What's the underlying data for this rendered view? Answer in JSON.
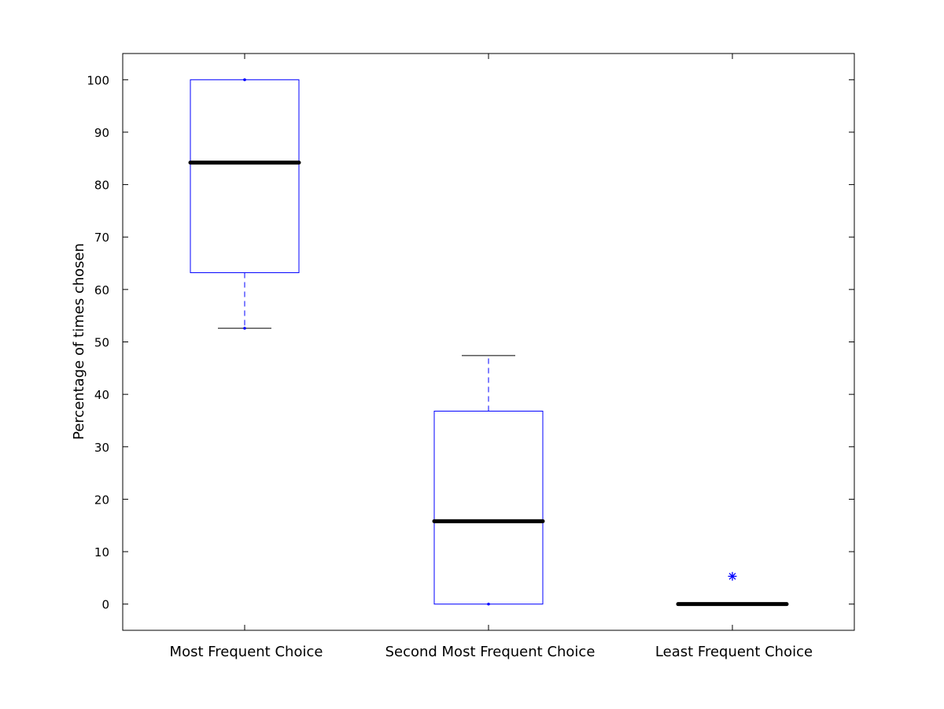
{
  "colors": {
    "background": "#ffffff",
    "axis": "#000000",
    "box": "#0000ff",
    "median": "#000000",
    "outlier": "#0000ff"
  },
  "chart_data": {
    "type": "box",
    "title": "",
    "xlabel": "",
    "ylabel": "Percentage of times chosen",
    "ylim": [
      -5,
      105
    ],
    "yticks": [
      0,
      10,
      20,
      30,
      40,
      50,
      60,
      70,
      80,
      90,
      100
    ],
    "grid": false,
    "categories": [
      "Most Frequent Choice",
      "Second Most Frequent Choice",
      "Least Frequent Choice"
    ],
    "boxes": [
      {
        "category": "Most Frequent Choice",
        "min": 52.6,
        "q1": 63.2,
        "median": 84.2,
        "q3": 100,
        "max": 100,
        "outliers": []
      },
      {
        "category": "Second Most Frequent Choice",
        "min": 0,
        "q1": 0,
        "median": 15.8,
        "q3": 36.8,
        "max": 47.4,
        "outliers": []
      },
      {
        "category": "Least Frequent Choice",
        "min": 0,
        "q1": 0,
        "median": 0,
        "q3": 0,
        "max": 0,
        "outliers": [
          5.3
        ]
      }
    ]
  }
}
